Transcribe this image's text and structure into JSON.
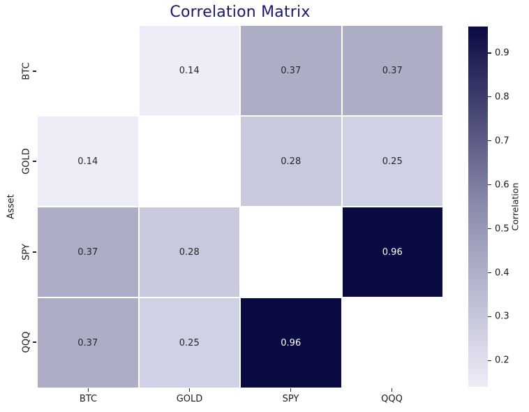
{
  "chart_data": {
    "type": "heatmap",
    "title": "Correlation Matrix",
    "xlabel": "",
    "ylabel": "Asset",
    "categories": [
      "BTC",
      "GOLD",
      "SPY",
      "QQQ"
    ],
    "matrix": [
      [
        null,
        0.14,
        0.37,
        0.37
      ],
      [
        0.14,
        null,
        0.28,
        0.25
      ],
      [
        0.37,
        0.28,
        null,
        0.96
      ],
      [
        0.37,
        0.25,
        0.96,
        null
      ]
    ],
    "diagonal_masked": true,
    "grid_lines": "white, 2px between cells",
    "legend_position": "colorbar-right",
    "colorbar": {
      "label": "Correlation",
      "vmin": 0.14,
      "vmax": 0.96,
      "ticks": [
        "0.9",
        "0.8",
        "0.7",
        "0.6",
        "0.5",
        "0.4",
        "0.3",
        "0.2"
      ],
      "color_min": "#ededf8",
      "color_max": "#0a0a42"
    },
    "colors": {
      "title": "#191970",
      "tick_text": "#1a1a1a",
      "annotation_text": "#262626",
      "annotation_text_on_dark": "#ffffff",
      "value_0_14": "#ededf8",
      "value_0_25": "#d0d1e4",
      "value_0_28": "#c8c9dc",
      "value_0_37": "#adaec6",
      "value_0_96": "#0a0a42",
      "masked_diagonal": "#ffffff"
    },
    "cells": [
      {
        "label": "",
        "style": "background:#ffffff"
      },
      {
        "label": "0.14",
        "style": "background:#ededf8;color:#262626"
      },
      {
        "label": "0.37",
        "style": "background:#adaec6;color:#262626"
      },
      {
        "label": "0.37",
        "style": "background:#adaec6;color:#262626"
      },
      {
        "label": "0.14",
        "style": "background:#ededf8;color:#262626"
      },
      {
        "label": "",
        "style": "background:#ffffff"
      },
      {
        "label": "0.28",
        "style": "background:#c8c9dc;color:#262626"
      },
      {
        "label": "0.25",
        "style": "background:#d0d1e4;color:#262626"
      },
      {
        "label": "0.37",
        "style": "background:#adaec6;color:#262626"
      },
      {
        "label": "0.28",
        "style": "background:#c8c9dc;color:#262626"
      },
      {
        "label": "",
        "style": "background:#ffffff"
      },
      {
        "label": "0.96",
        "style": "background:#0a0a42;color:#ffffff"
      },
      {
        "label": "0.37",
        "style": "background:#adaec6;color:#262626"
      },
      {
        "label": "0.25",
        "style": "background:#d0d1e4;color:#262626"
      },
      {
        "label": "0.96",
        "style": "background:#0a0a42;color:#ffffff"
      },
      {
        "label": "",
        "style": "background:#ffffff"
      }
    ]
  }
}
